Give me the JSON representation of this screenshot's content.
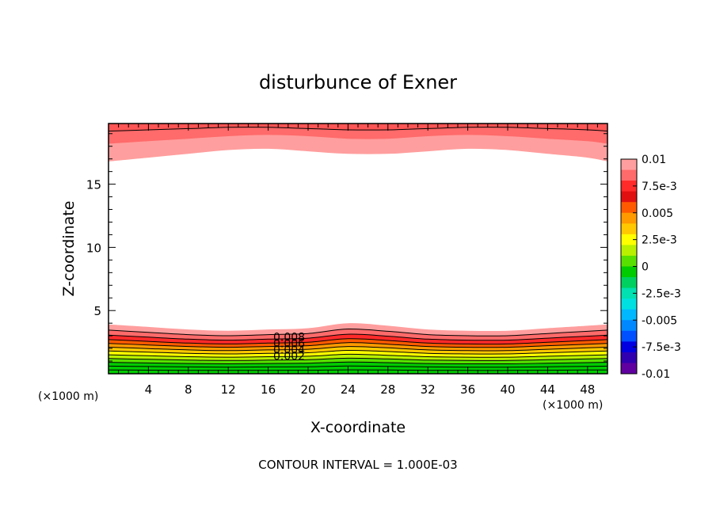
{
  "chart_data": {
    "type": "heatmap",
    "title": "disturbunce of Exner",
    "xlabel": "X-coordinate",
    "ylabel": "Z-coordinate",
    "x_unit": "(×1000 m)",
    "footer": "CONTOUR INTERVAL = 1.000E-03",
    "xlim": [
      0,
      50
    ],
    "ylim": [
      0,
      19.8
    ],
    "xticks": [
      4,
      8,
      12,
      16,
      20,
      24,
      28,
      32,
      36,
      40,
      44,
      48
    ],
    "yticks": [
      5,
      10,
      15
    ],
    "colorbar": {
      "labels": [
        "0.01",
        "7.5e-3",
        "0.005",
        "2.5e-3",
        "0",
        "-2.5e-3",
        "-0.005",
        "-7.5e-3",
        "-0.01"
      ],
      "label_values": [
        0.01,
        0.0075,
        0.005,
        0.0025,
        0,
        -0.0025,
        -0.005,
        -0.0075,
        -0.01
      ],
      "levels": [
        0.01,
        0.009,
        0.008,
        0.007,
        0.006,
        0.005,
        0.004,
        0.003,
        0.002,
        0.001,
        0,
        -0.001,
        -0.002,
        -0.003,
        -0.004,
        -0.005,
        -0.006,
        -0.007,
        -0.008,
        -0.009,
        -0.01
      ],
      "colors": [
        "#ff9e9e",
        "#ff6a6a",
        "#ff2a2a",
        "#e01010",
        "#ff5a00",
        "#ff9a00",
        "#ffc800",
        "#ffff00",
        "#b8f000",
        "#58e000",
        "#00cc00",
        "#00d060",
        "#00e0b0",
        "#00e0e0",
        "#00b8ff",
        "#0088ff",
        "#0050ff",
        "#0000e0",
        "#3000b0",
        "#6000a0"
      ]
    },
    "contour_labels": [
      "0.008",
      "0.006",
      "0.004",
      "0.002"
    ],
    "lower_band": {
      "x": [
        0,
        4,
        8,
        12,
        16,
        20,
        24,
        28,
        32,
        36,
        40,
        44,
        48,
        50
      ],
      "top_z": [
        3.9,
        3.7,
        3.5,
        3.4,
        3.5,
        3.6,
        4.0,
        3.8,
        3.5,
        3.4,
        3.4,
        3.6,
        3.8,
        3.9
      ],
      "level_heights": [
        3.45,
        3.05,
        2.7,
        2.4,
        2.1,
        1.8,
        1.5,
        1.2,
        0.9,
        0.6,
        0.3
      ]
    },
    "upper_band": {
      "x": [
        0,
        4,
        8,
        12,
        16,
        20,
        24,
        28,
        32,
        36,
        40,
        44,
        48,
        50
      ],
      "bottom_z": [
        16.8,
        17.1,
        17.4,
        17.7,
        17.8,
        17.6,
        17.4,
        17.4,
        17.6,
        17.8,
        17.7,
        17.4,
        17.1,
        16.8
      ],
      "mid_z": [
        18.2,
        18.4,
        18.6,
        18.8,
        18.9,
        18.8,
        18.6,
        18.6,
        18.8,
        18.9,
        18.8,
        18.6,
        18.4,
        18.2
      ],
      "top_z": [
        19.2,
        19.3,
        19.4,
        19.5,
        19.5,
        19.4,
        19.3,
        19.3,
        19.4,
        19.5,
        19.5,
        19.4,
        19.3,
        19.2
      ]
    }
  }
}
